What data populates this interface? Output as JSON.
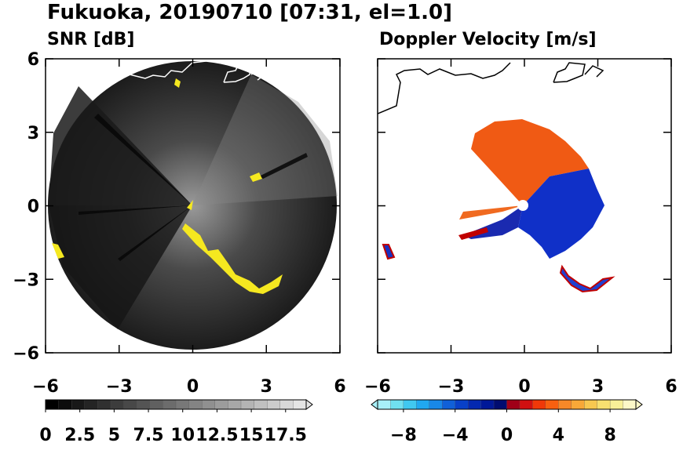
{
  "title": "Fukuoka, 20190710 [07:31, el=1.0]",
  "chart_data": [
    {
      "type": "radar",
      "subtitle": "SNR [dB]",
      "xlim": [
        -6,
        6
      ],
      "ylim": [
        -6,
        6
      ],
      "xticks": [
        {
          "value": -6,
          "label": "−6"
        },
        {
          "value": -3,
          "label": "−3"
        },
        0,
        3,
        6
      ],
      "yticks": [
        {
          "value": -6,
          "label": "−6"
        },
        {
          "value": -3,
          "label": "−3"
        },
        0,
        3,
        6
      ],
      "clim": [
        0,
        19
      ],
      "cticks": [
        0,
        2.5,
        5,
        7.5,
        10,
        12.5,
        15,
        17.5
      ],
      "colors": [
        "#000000",
        "#0c0c0c",
        "#181818",
        "#242424",
        "#303030",
        "#3c3c3c",
        "#484848",
        "#545454",
        "#606060",
        "#6c6c6c",
        "#787878",
        "#848484",
        "#909090",
        "#9c9c9c",
        "#a8a8a8",
        "#b4b4b4",
        "#c0c0c0",
        "#cccccc",
        "#d8d8d8",
        "#e4e4e4"
      ],
      "extend": "max"
    },
    {
      "type": "radar",
      "subtitle": "Doppler Velocity [m/s]",
      "xlim": [
        -6,
        6
      ],
      "ylim": [
        -6,
        6
      ],
      "xticks": [
        {
          "value": -6,
          "label": "−6"
        },
        {
          "value": -3,
          "label": "−3"
        },
        0,
        3,
        6
      ],
      "clim": [
        -10,
        10
      ],
      "cticks": [
        {
          "value": -8,
          "label": "−8"
        },
        {
          "value": -4,
          "label": "−4"
        },
        0,
        4,
        8
      ],
      "colors": [
        "#a8f0f8",
        "#70e0f0",
        "#40c8f0",
        "#20a8f0",
        "#1888e8",
        "#1060d8",
        "#0840c8",
        "#0428b0",
        "#001898",
        "#000c70",
        "#a00018",
        "#d01010",
        "#f03808",
        "#f86010",
        "#f88828",
        "#f8a838",
        "#f8c850",
        "#f8e070",
        "#f8f098",
        "#fcf8c8"
      ],
      "extend": "both"
    }
  ]
}
